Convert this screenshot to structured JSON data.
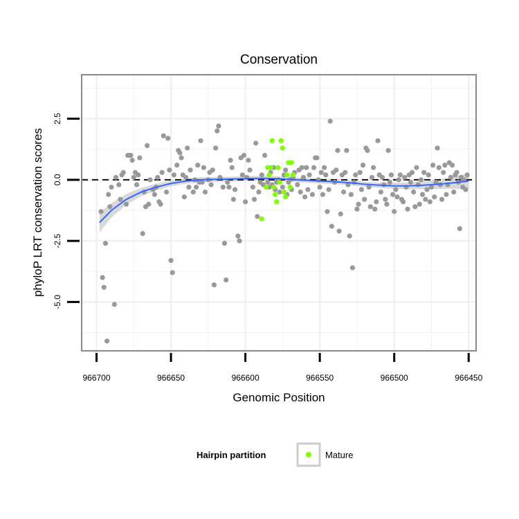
{
  "chart_data": {
    "type": "scatter",
    "title": "Conservation",
    "xlabel": "Genomic Position",
    "ylabel": "phyloP LRT conservation scores",
    "xlim": [
      966710,
      966445
    ],
    "ylim": [
      -7,
      4.3
    ],
    "x_reversed": true,
    "xticks": [
      966700,
      966650,
      966600,
      966550,
      966500,
      966450
    ],
    "xtick_labels": [
      "966700",
      "966650",
      "966600",
      "966550",
      "966500",
      "966450"
    ],
    "yticks": [
      2.5,
      0.0,
      -2.5,
      -5.0
    ],
    "ytick_labels": [
      "2.5",
      "0.0",
      "-2.5",
      "-5.0"
    ],
    "grid": true,
    "reference_line": {
      "y": 0,
      "style": "dashed"
    },
    "legend": {
      "title": "Hairpin partition",
      "position": "bottom",
      "entries": [
        {
          "label": "Mature",
          "color": "#7fff00"
        }
      ]
    },
    "colors": {
      "other": "#999999",
      "mature": "#7fff00",
      "smooth": "#3366ff",
      "band": "#cccccc"
    },
    "series": [
      {
        "name": "",
        "color": "#999999",
        "points": [
          [
            966697,
            -1.3
          ],
          [
            966696,
            -4.0
          ],
          [
            966695,
            -4.4
          ],
          [
            966694,
            -2.6
          ],
          [
            966693,
            -6.6
          ],
          [
            966692,
            -0.6
          ],
          [
            966691,
            -1.1
          ],
          [
            966690,
            -0.3
          ],
          [
            966688,
            -5.1
          ],
          [
            966687,
            0.1
          ],
          [
            966685,
            -0.2
          ],
          [
            966684,
            -0.8
          ],
          [
            966683,
            0.2
          ],
          [
            966682,
            0.3
          ],
          [
            966680,
            -1.0
          ],
          [
            966679,
            1.0
          ],
          [
            966678,
            1.0
          ],
          [
            966677,
            1.0
          ],
          [
            966676,
            0.8
          ],
          [
            966675,
            0.1
          ],
          [
            966674,
            0.3
          ],
          [
            966673,
            -0.2
          ],
          [
            966672,
            0.2
          ],
          [
            966671,
            0.9
          ],
          [
            966669,
            -2.2
          ],
          [
            966668,
            -0.5
          ],
          [
            966667,
            -1.1
          ],
          [
            966666,
            1.4
          ],
          [
            966665,
            -1.0
          ],
          [
            966664,
            0.0
          ],
          [
            966662,
            -0.4
          ],
          [
            966661,
            -0.6
          ],
          [
            966660,
            -0.3
          ],
          [
            966659,
            0.1
          ],
          [
            966658,
            -0.9
          ],
          [
            966657,
            -1.0
          ],
          [
            966656,
            0.3
          ],
          [
            966655,
            1.8
          ],
          [
            966653,
            -0.5
          ],
          [
            966652,
            1.7
          ],
          [
            966651,
            0.4
          ],
          [
            966650,
            -3.3
          ],
          [
            966649,
            -3.8
          ],
          [
            966648,
            0.2
          ],
          [
            966646,
            0.6
          ],
          [
            966645,
            1.2
          ],
          [
            966644,
            1.1
          ],
          [
            966643,
            0.9
          ],
          [
            966642,
            0.2
          ],
          [
            966641,
            -0.7
          ],
          [
            966640,
            0.1
          ],
          [
            966639,
            1.3
          ],
          [
            966638,
            -0.3
          ],
          [
            966637,
            0.4
          ],
          [
            966635,
            -0.5
          ],
          [
            966634,
            0.0
          ],
          [
            966633,
            -0.3
          ],
          [
            966632,
            0.6
          ],
          [
            966631,
            -0.1
          ],
          [
            966630,
            1.6
          ],
          [
            966629,
            -0.1
          ],
          [
            966628,
            0.5
          ],
          [
            966627,
            -0.5
          ],
          [
            966625,
            0.0
          ],
          [
            966624,
            0.3
          ],
          [
            966623,
            -0.2
          ],
          [
            966622,
            0.4
          ],
          [
            966621,
            -4.3
          ],
          [
            966620,
            1.3
          ],
          [
            966619,
            2.0
          ],
          [
            966618,
            2.2
          ],
          [
            966617,
            0.1
          ],
          [
            966615,
            -0.3
          ],
          [
            966614,
            -2.6
          ],
          [
            966613,
            -4.1
          ],
          [
            966612,
            -0.1
          ],
          [
            966611,
            -0.3
          ],
          [
            966610,
            0.8
          ],
          [
            966609,
            0.5
          ],
          [
            966608,
            -0.8
          ],
          [
            966607,
            -0.4
          ],
          [
            966605,
            -2.3
          ],
          [
            966604,
            -2.5
          ],
          [
            966603,
            0.9
          ],
          [
            966602,
            0.2
          ],
          [
            966601,
            1.0
          ],
          [
            966600,
            -0.9
          ],
          [
            966599,
            0.1
          ],
          [
            966598,
            0.8
          ],
          [
            966597,
            0.4
          ],
          [
            966595,
            -0.3
          ],
          [
            966594,
            -0.8
          ],
          [
            966593,
            1.5
          ],
          [
            966592,
            -1.5
          ],
          [
            966591,
            -0.5
          ],
          [
            966590,
            -0.1
          ],
          [
            966589,
            0.2
          ],
          [
            966588,
            -0.2
          ],
          [
            966587,
            1.0
          ],
          [
            966585,
            -0.1
          ],
          [
            966584,
            -0.3
          ],
          [
            966583,
            0.3
          ],
          [
            966582,
            -0.2
          ],
          [
            966581,
            0.5
          ],
          [
            966580,
            -0.4
          ],
          [
            966579,
            -0.1
          ],
          [
            966578,
            0.0
          ],
          [
            966577,
            -0.5
          ],
          [
            966575,
            -0.3
          ],
          [
            966574,
            0.2
          ],
          [
            966573,
            0.4
          ],
          [
            966572,
            -0.6
          ],
          [
            966571,
            -0.1
          ],
          [
            966570,
            0.0
          ],
          [
            966569,
            -0.4
          ],
          [
            966568,
            0.1
          ],
          [
            966567,
            0.3
          ],
          [
            966565,
            -0.2
          ],
          [
            966564,
            0.4
          ],
          [
            966563,
            -0.5
          ],
          [
            966562,
            0.5
          ],
          [
            966561,
            0.1
          ],
          [
            966560,
            -0.7
          ],
          [
            966559,
            0.5
          ],
          [
            966558,
            -0.4
          ],
          [
            966557,
            0.2
          ],
          [
            966555,
            -0.6
          ],
          [
            966554,
            0.5
          ],
          [
            966553,
            0.9
          ],
          [
            966552,
            0.9
          ],
          [
            966551,
            0.0
          ],
          [
            966550,
            -0.3
          ],
          [
            966549,
            0.3
          ],
          [
            966548,
            -0.6
          ],
          [
            966547,
            0.5
          ],
          [
            966546,
            0.2
          ],
          [
            966545,
            -1.3
          ],
          [
            966544,
            -0.4
          ],
          [
            966543,
            2.4
          ],
          [
            966542,
            -1.9
          ],
          [
            966541,
            0.3
          ],
          [
            966540,
            -0.1
          ],
          [
            966539,
            0.4
          ],
          [
            966538,
            1.2
          ],
          [
            966537,
            -2.1
          ],
          [
            966536,
            -1.4
          ],
          [
            966535,
            0.2
          ],
          [
            966534,
            -0.5
          ],
          [
            966533,
            0.3
          ],
          [
            966532,
            1.2
          ],
          [
            966531,
            -0.2
          ],
          [
            966530,
            -2.3
          ],
          [
            966529,
            -0.6
          ],
          [
            966528,
            -3.6
          ],
          [
            966527,
            -0.1
          ],
          [
            966526,
            0.2
          ],
          [
            966525,
            -1.2
          ],
          [
            966524,
            -1.0
          ],
          [
            966523,
            0.3
          ],
          [
            966522,
            -0.4
          ],
          [
            966521,
            0.6
          ],
          [
            966520,
            -0.8
          ],
          [
            966519,
            1.3
          ],
          [
            966518,
            1.2
          ],
          [
            966517,
            -0.3
          ],
          [
            966516,
            -1.1
          ],
          [
            966515,
            0.1
          ],
          [
            966514,
            0.5
          ],
          [
            966513,
            -1.2
          ],
          [
            966512,
            -0.9
          ],
          [
            966511,
            1.6
          ],
          [
            966510,
            0.2
          ],
          [
            966509,
            -0.5
          ],
          [
            966508,
            0.1
          ],
          [
            966507,
            -0.2
          ],
          [
            966506,
            -0.8
          ],
          [
            966505,
            -1.0
          ],
          [
            966504,
            1.2
          ],
          [
            966503,
            -0.1
          ],
          [
            966502,
            0.2
          ],
          [
            966501,
            -0.6
          ],
          [
            966500,
            -1.3
          ],
          [
            966499,
            -0.4
          ],
          [
            966498,
            -0.7
          ],
          [
            966497,
            0.0
          ],
          [
            966496,
            0.2
          ],
          [
            966495,
            -0.8
          ],
          [
            966494,
            -0.9
          ],
          [
            966493,
            0.1
          ],
          [
            966492,
            -0.3
          ],
          [
            966491,
            -1.2
          ],
          [
            966490,
            0.2
          ],
          [
            966489,
            -0.1
          ],
          [
            966488,
            0.3
          ],
          [
            966487,
            -0.5
          ],
          [
            966486,
            -1.1
          ],
          [
            966485,
            0.5
          ],
          [
            966484,
            -0.2
          ],
          [
            966483,
            -1.0
          ],
          [
            966482,
            0.0
          ],
          [
            966481,
            -0.6
          ],
          [
            966480,
            0.3
          ],
          [
            966479,
            -0.8
          ],
          [
            966478,
            -0.4
          ],
          [
            966477,
            0.2
          ],
          [
            966476,
            -0.9
          ],
          [
            966475,
            -0.3
          ],
          [
            966474,
            0.6
          ],
          [
            966473,
            -0.7
          ],
          [
            966472,
            -0.1
          ],
          [
            966471,
            1.3
          ],
          [
            966470,
            0.5
          ],
          [
            966469,
            -0.2
          ],
          [
            966468,
            -0.8
          ],
          [
            966467,
            0.3
          ],
          [
            966466,
            0.6
          ],
          [
            966465,
            -0.6
          ],
          [
            966464,
            -0.2
          ],
          [
            966463,
            0.7
          ],
          [
            966462,
            0.1
          ],
          [
            966461,
            0.6
          ],
          [
            966460,
            -0.5
          ],
          [
            966459,
            0.2
          ],
          [
            966458,
            0.3
          ],
          [
            966457,
            -0.1
          ],
          [
            966456,
            -2.0
          ],
          [
            966455,
            0.1
          ],
          [
            966454,
            -0.3
          ],
          [
            966453,
            0.0
          ],
          [
            966452,
            -0.4
          ],
          [
            966451,
            0.2
          ]
        ]
      },
      {
        "name": "Mature",
        "color": "#7fff00",
        "points": [
          [
            966589,
            -1.6
          ],
          [
            966586,
            -0.3
          ],
          [
            966585,
            0.5
          ],
          [
            966584,
            0.2
          ],
          [
            966583,
            0.5
          ],
          [
            966582,
            1.6
          ],
          [
            966581,
            -0.3
          ],
          [
            966580,
            -0.6
          ],
          [
            966579,
            -0.9
          ],
          [
            966578,
            0.5
          ],
          [
            966577,
            -0.1
          ],
          [
            966576,
            1.6
          ],
          [
            966575,
            1.3
          ],
          [
            966574,
            -0.5
          ],
          [
            966573,
            -0.7
          ],
          [
            966572,
            0.2
          ],
          [
            966571,
            0.7
          ],
          [
            966570,
            -0.3
          ],
          [
            966569,
            0.7
          ],
          [
            966568,
            0.2
          ]
        ]
      }
    ],
    "smooth": {
      "x": [
        966698,
        966690,
        966680,
        966670,
        966660,
        966650,
        966640,
        966630,
        966620,
        966610,
        966600,
        966590,
        966580,
        966570,
        966560,
        966550,
        966540,
        966530,
        966520,
        966510,
        966500,
        966490,
        966480,
        966470,
        966460,
        966450
      ],
      "y": [
        -1.75,
        -1.25,
        -0.8,
        -0.5,
        -0.3,
        -0.15,
        -0.05,
        0.0,
        0.02,
        0.03,
        0.05,
        0.06,
        0.05,
        0.02,
        -0.02,
        -0.05,
        -0.08,
        -0.12,
        -0.18,
        -0.22,
        -0.25,
        -0.25,
        -0.22,
        -0.18,
        -0.12,
        -0.05
      ],
      "band": [
        0.4,
        0.3,
        0.22,
        0.17,
        0.14,
        0.12,
        0.11,
        0.1,
        0.1,
        0.1,
        0.1,
        0.1,
        0.1,
        0.1,
        0.1,
        0.1,
        0.1,
        0.1,
        0.1,
        0.11,
        0.12,
        0.14,
        0.16,
        0.2,
        0.25,
        0.32
      ]
    }
  }
}
